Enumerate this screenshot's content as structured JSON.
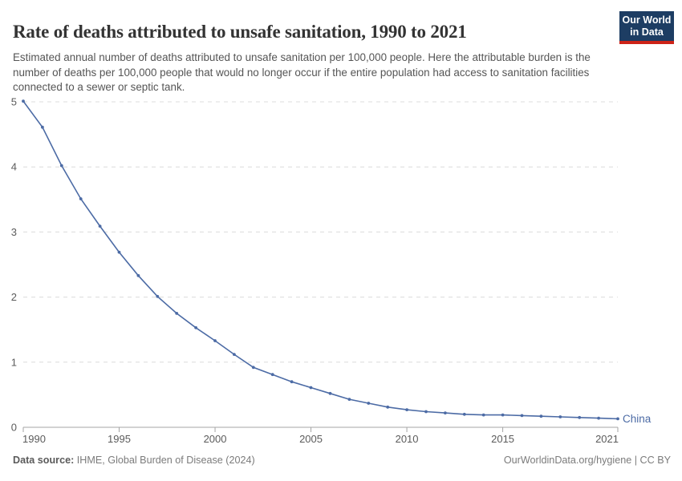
{
  "header": {
    "logo": {
      "line1": "Our World",
      "line2": "in Data"
    }
  },
  "chart_data": {
    "type": "line",
    "title": "Rate of deaths attributed to unsafe sanitation, 1990 to 2021",
    "subtitle": "Estimated annual number of deaths attributed to unsafe sanitation per 100,000 people. Here the attributable burden is the number of deaths per 100,000 people that would no longer occur if the entire population had access to sanitation facilities connected to a sewer or septic tank.",
    "xlabel": "",
    "ylabel": "",
    "xlim": [
      1990,
      2021
    ],
    "ylim": [
      0,
      5
    ],
    "xticks": [
      1990,
      1995,
      2000,
      2005,
      2010,
      2015,
      2021
    ],
    "yticks": [
      0,
      1,
      2,
      3,
      4,
      5
    ],
    "grid": "horizontal-dashed",
    "legend": "line-end-label",
    "x": [
      1990,
      1991,
      1992,
      1993,
      1994,
      1995,
      1996,
      1997,
      1998,
      1999,
      2000,
      2001,
      2002,
      2003,
      2004,
      2005,
      2006,
      2007,
      2008,
      2009,
      2010,
      2011,
      2012,
      2013,
      2014,
      2015,
      2016,
      2017,
      2018,
      2019,
      2020,
      2021
    ],
    "series": [
      {
        "name": "China",
        "color": "#4c6ba5",
        "values": [
          5.01,
          4.61,
          4.02,
          3.51,
          3.09,
          2.69,
          2.33,
          2.01,
          1.75,
          1.53,
          1.33,
          1.12,
          0.92,
          0.81,
          0.7,
          0.61,
          0.52,
          0.43,
          0.37,
          0.31,
          0.27,
          0.24,
          0.22,
          0.2,
          0.19,
          0.19,
          0.18,
          0.17,
          0.16,
          0.15,
          0.14,
          0.13
        ]
      }
    ]
  },
  "style_colors": {
    "grid": "#dcdcdc",
    "axis": "#a5a5a5",
    "tick_text": "#5b5b5b",
    "series_blue": "#4c6ba5",
    "logo_navy": "#1d3d63",
    "logo_red": "#cd2318"
  },
  "footer": {
    "source_label": "Data source:",
    "source_value": " IHME, Global Burden of Disease (2024)",
    "credit": "OurWorldinData.org/hygiene | CC BY"
  }
}
